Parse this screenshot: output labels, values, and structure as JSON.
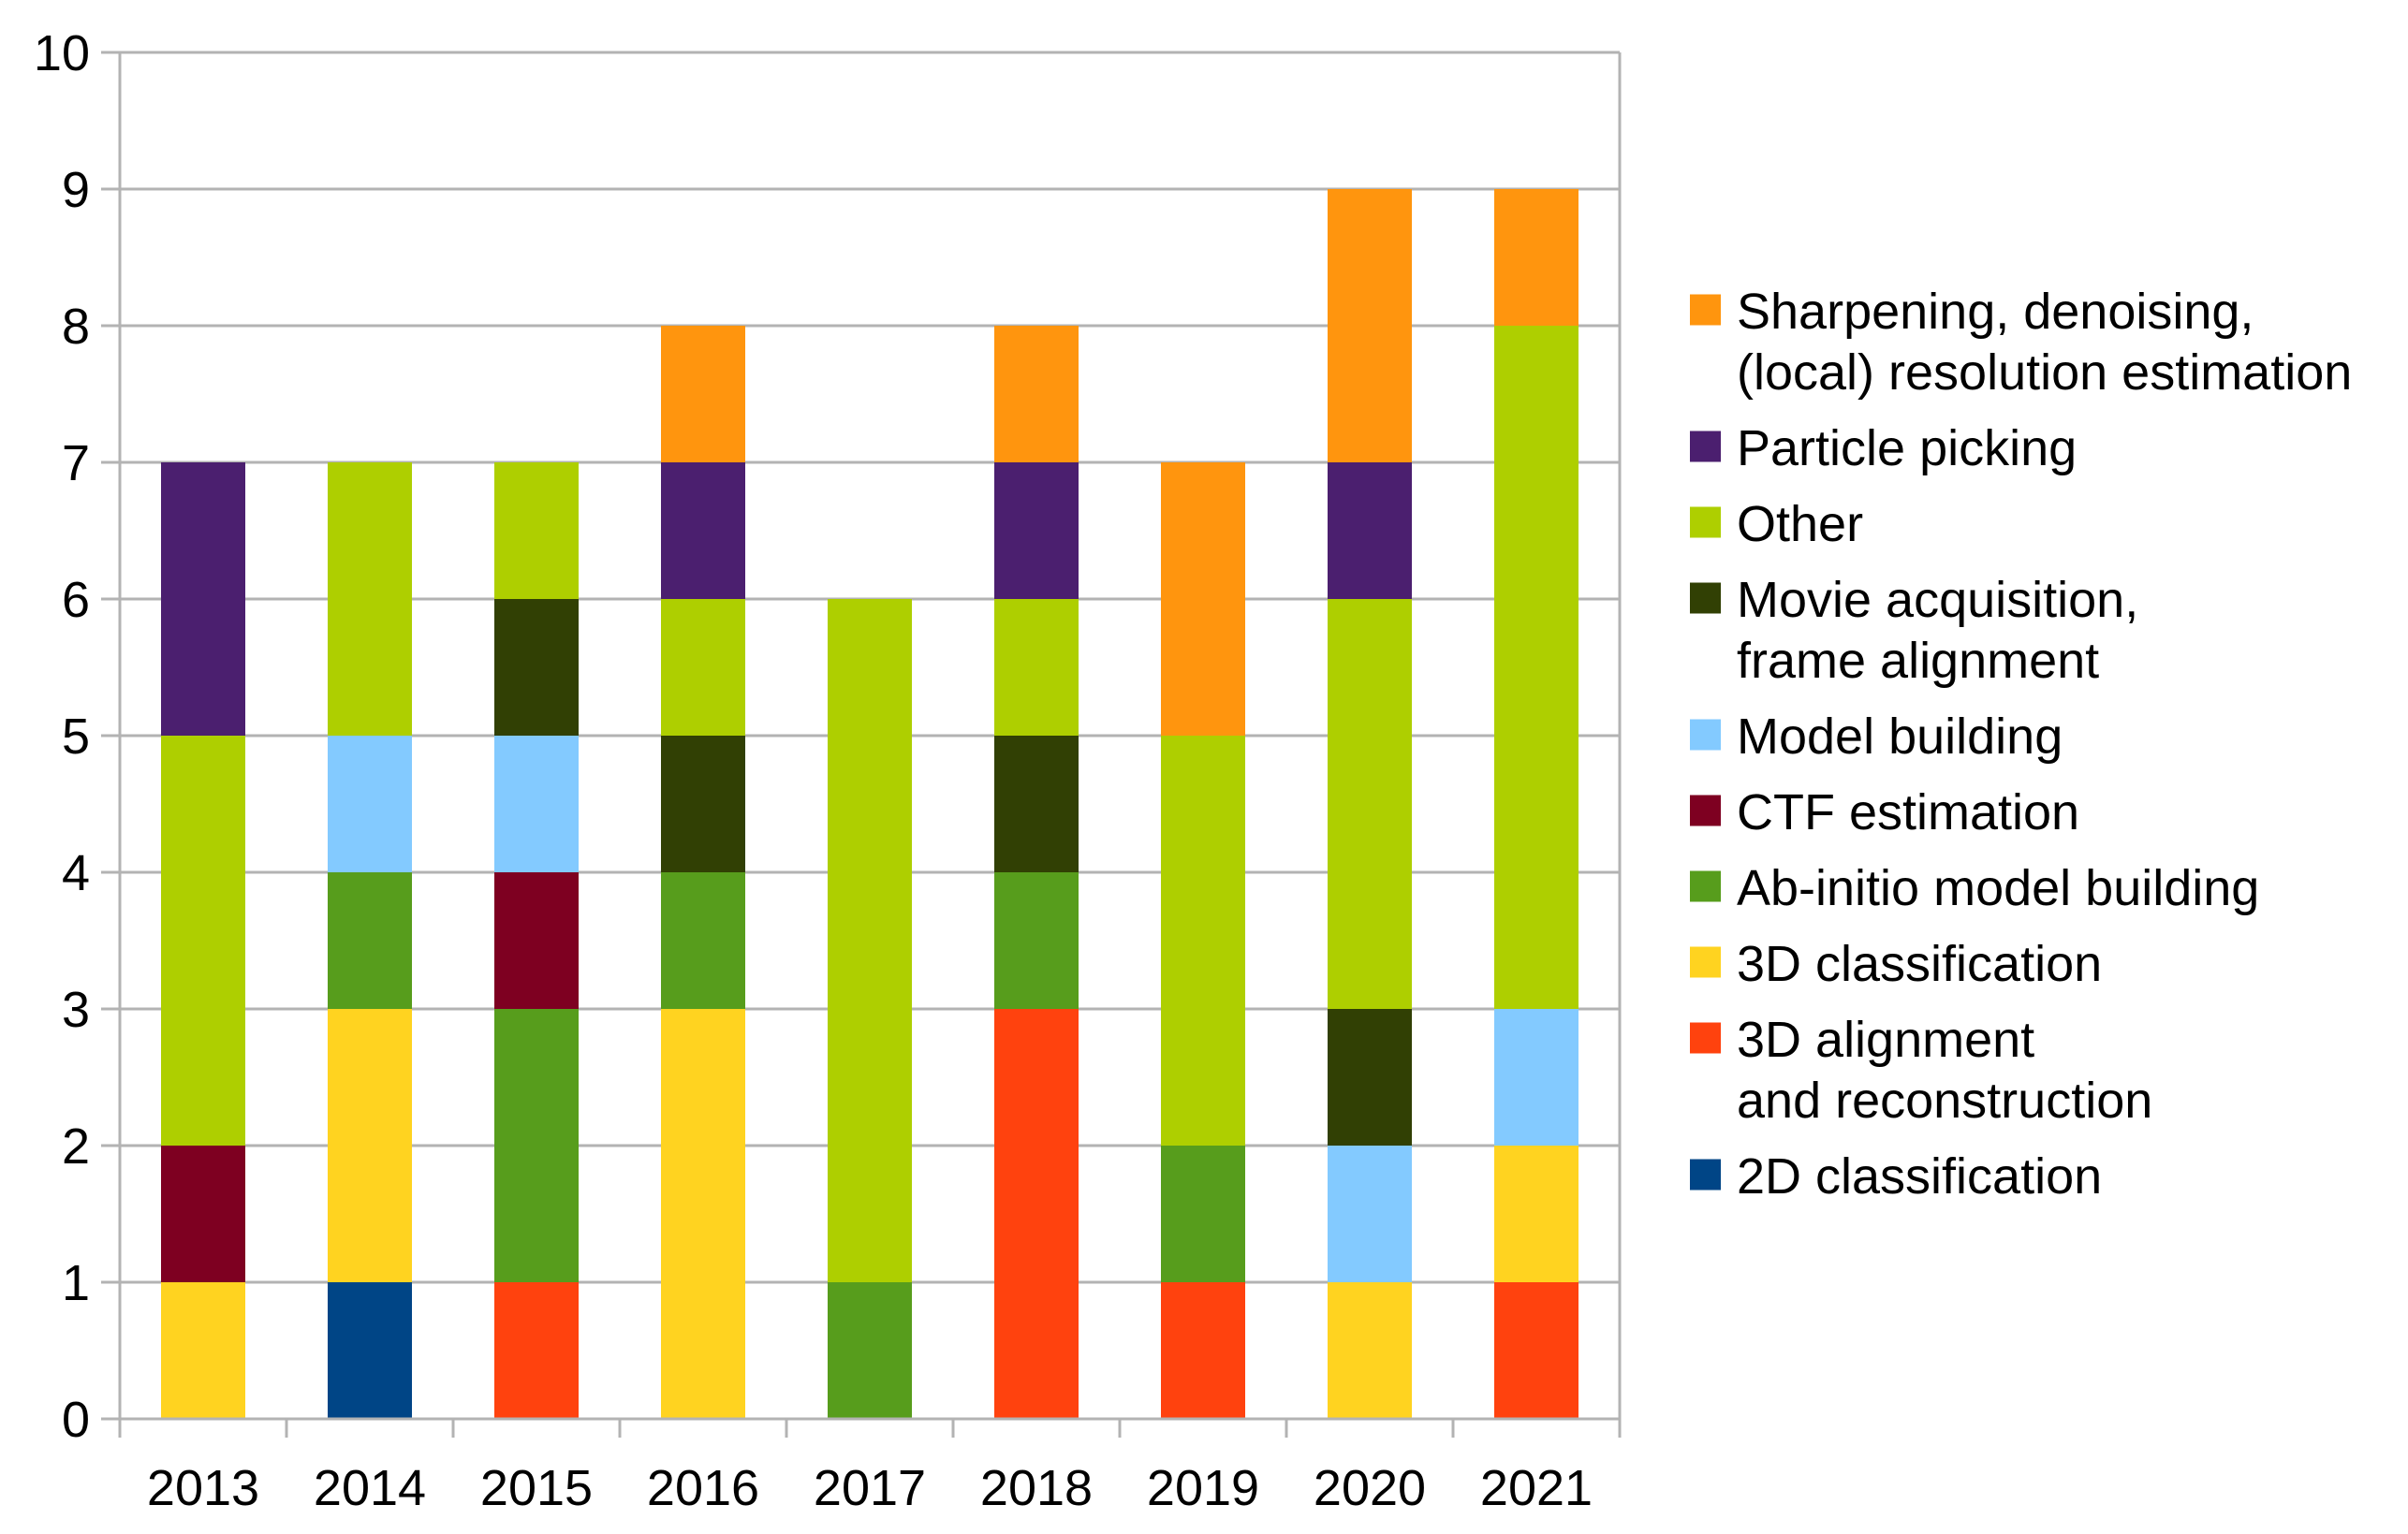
{
  "chart_data": {
    "type": "bar",
    "stacked": true,
    "title": "",
    "xlabel": "",
    "ylabel": "",
    "ylim": [
      0,
      10
    ],
    "yticks": [
      0,
      1,
      2,
      3,
      4,
      5,
      6,
      7,
      8,
      9,
      10
    ],
    "grid": true,
    "legend_position": "right",
    "categories": [
      "2013",
      "2014",
      "2015",
      "2016",
      "2017",
      "2018",
      "2019",
      "2020",
      "2021"
    ],
    "series": [
      {
        "name": "2D classification",
        "lines": [
          "2D classification"
        ],
        "color": "#004586",
        "values": [
          0,
          1,
          0,
          0,
          0,
          0,
          0,
          0,
          0
        ]
      },
      {
        "name": "3D alignment and reconstruction",
        "lines": [
          "3D alignment",
          "and reconstruction"
        ],
        "color": "#ff420e",
        "values": [
          0,
          0,
          1,
          0,
          0,
          3,
          1,
          0,
          1
        ]
      },
      {
        "name": "3D classification",
        "lines": [
          "3D classification"
        ],
        "color": "#ffd320",
        "values": [
          1,
          2,
          0,
          3,
          0,
          0,
          0,
          1,
          1
        ]
      },
      {
        "name": "Ab-initio model building",
        "lines": [
          "Ab-initio model building"
        ],
        "color": "#579d1c",
        "values": [
          0,
          1,
          2,
          1,
          1,
          1,
          1,
          0,
          0
        ]
      },
      {
        "name": "CTF estimation",
        "lines": [
          "CTF estimation"
        ],
        "color": "#7e0021",
        "values": [
          1,
          0,
          1,
          0,
          0,
          0,
          0,
          0,
          0
        ]
      },
      {
        "name": "Model building",
        "lines": [
          "Model building"
        ],
        "color": "#83caff",
        "values": [
          0,
          1,
          1,
          0,
          0,
          0,
          0,
          1,
          1
        ]
      },
      {
        "name": "Movie acquisition, frame alignment",
        "lines": [
          "Movie acquisition,",
          "frame alignment"
        ],
        "color": "#314004",
        "values": [
          0,
          0,
          1,
          1,
          0,
          1,
          0,
          1,
          0
        ]
      },
      {
        "name": "Other",
        "lines": [
          "Other"
        ],
        "color": "#aecf00",
        "values": [
          3,
          2,
          1,
          1,
          5,
          1,
          3,
          3,
          5
        ]
      },
      {
        "name": "Particle picking",
        "lines": [
          "Particle picking"
        ],
        "color": "#4b1f6f",
        "values": [
          2,
          0,
          0,
          1,
          0,
          1,
          0,
          1,
          0
        ]
      },
      {
        "name": "Sharpening, denoising, (local) resolution estimation",
        "lines": [
          "Sharpening, denoising,",
          "(local) resolution estimation"
        ],
        "color": "#ff950e",
        "values": [
          0,
          0,
          0,
          1,
          0,
          1,
          2,
          2,
          1
        ]
      }
    ]
  }
}
